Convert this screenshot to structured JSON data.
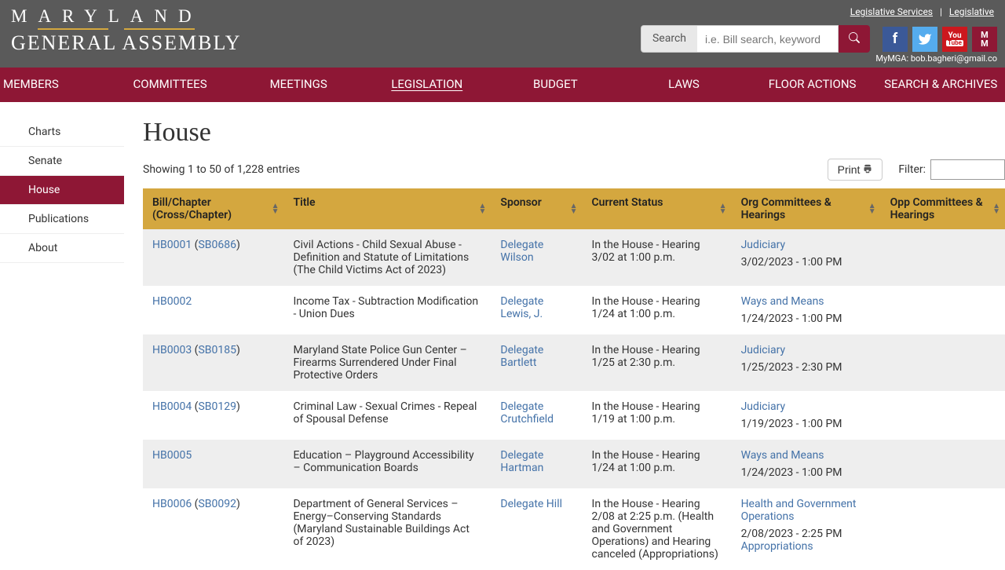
{
  "top_links": {
    "legislative_services": "Legislative Services",
    "legislative": "Legislative"
  },
  "logo": {
    "top": "MARYLAND",
    "bottom": "GENERAL ASSEMBLY"
  },
  "search": {
    "label": "Search",
    "placeholder": "i.e. Bill search, keyword"
  },
  "mymga": "MyMGA: bob.bagheri@gmail.co",
  "nav": [
    "MEMBERS",
    "COMMITTEES",
    "MEETINGS",
    "LEGISLATION",
    "BUDGET",
    "LAWS",
    "FLOOR ACTIONS",
    "SEARCH & ARCHIVES"
  ],
  "nav_active": 3,
  "sidebar": [
    "Charts",
    "Senate",
    "House",
    "Publications",
    "About"
  ],
  "sidebar_active": 2,
  "page_title": "House",
  "showing": "Showing 1 to 50 of 1,228 entries",
  "print": "Print",
  "filter_label": "Filter:",
  "filter_value": "",
  "columns": [
    "Bill/Chapter (Cross/Chapter)",
    "Title",
    "Sponsor",
    "Current Status",
    "Org Committees & Hearings",
    "Opp Committees & Hearings"
  ],
  "rows": [
    {
      "bill": "HB0001",
      "cross": "SB0686",
      "title": "Civil Actions - Child Sexual Abuse - Definition and Statute of Limitations (The Child Victims Act of 2023)",
      "sponsor": "Delegate Wilson",
      "status": "In the House - Hearing 3/02 at 1:00 p.m.",
      "org_committee": "Judiciary",
      "org_date": "3/02/2023 - 1:00 PM",
      "opp_committee": "",
      "opp_date": ""
    },
    {
      "bill": "HB0002",
      "cross": "",
      "title": "Income Tax - Subtraction Modification - Union Dues",
      "sponsor": "Delegate Lewis, J.",
      "status": "In the House - Hearing 1/24 at 1:00 p.m.",
      "org_committee": "Ways and Means",
      "org_date": "1/24/2023 - 1:00 PM",
      "opp_committee": "",
      "opp_date": ""
    },
    {
      "bill": "HB0003",
      "cross": "SB0185",
      "title": "Maryland State Police Gun Center – Firearms Surrendered Under Final Protective Orders",
      "sponsor": "Delegate Bartlett",
      "status": "In the House - Hearing 1/25 at 2:30 p.m.",
      "org_committee": "Judiciary",
      "org_date": "1/25/2023 - 2:30 PM",
      "opp_committee": "",
      "opp_date": ""
    },
    {
      "bill": "HB0004",
      "cross": "SB0129",
      "title": "Criminal Law - Sexual Crimes - Repeal of Spousal Defense",
      "sponsor": "Delegate Crutchfield",
      "status": "In the House - Hearing 1/19 at 1:00 p.m.",
      "org_committee": "Judiciary",
      "org_date": "1/19/2023 - 1:00 PM",
      "opp_committee": "",
      "opp_date": ""
    },
    {
      "bill": "HB0005",
      "cross": "",
      "title": "Education – Playground Accessibility – Communication Boards",
      "sponsor": "Delegate Hartman",
      "status": "In the House - Hearing 1/24 at 1:00 p.m.",
      "org_committee": "Ways and Means",
      "org_date": "1/24/2023 - 1:00 PM",
      "opp_committee": "",
      "opp_date": ""
    },
    {
      "bill": "HB0006",
      "cross": "SB0092",
      "title": "Department of General Services – Energy–Conserving Standards (Maryland Sustainable Buildings Act of 2023)",
      "sponsor": "Delegate Hill",
      "status": "In the House - Hearing 2/08 at 2:25 p.m. (Health and Government Operations) and Hearing canceled (Appropriations)",
      "org_committee": "Health and Government Operations",
      "org_date": "2/08/2023 - 2:25 PM",
      "org_committee2": "Appropriations",
      "opp_committee": "",
      "opp_date": ""
    }
  ],
  "colors": {
    "brand": "#8e1735",
    "gold": "#d4a73f",
    "link": "#4472a8",
    "row_alt": "#eeeeee"
  }
}
